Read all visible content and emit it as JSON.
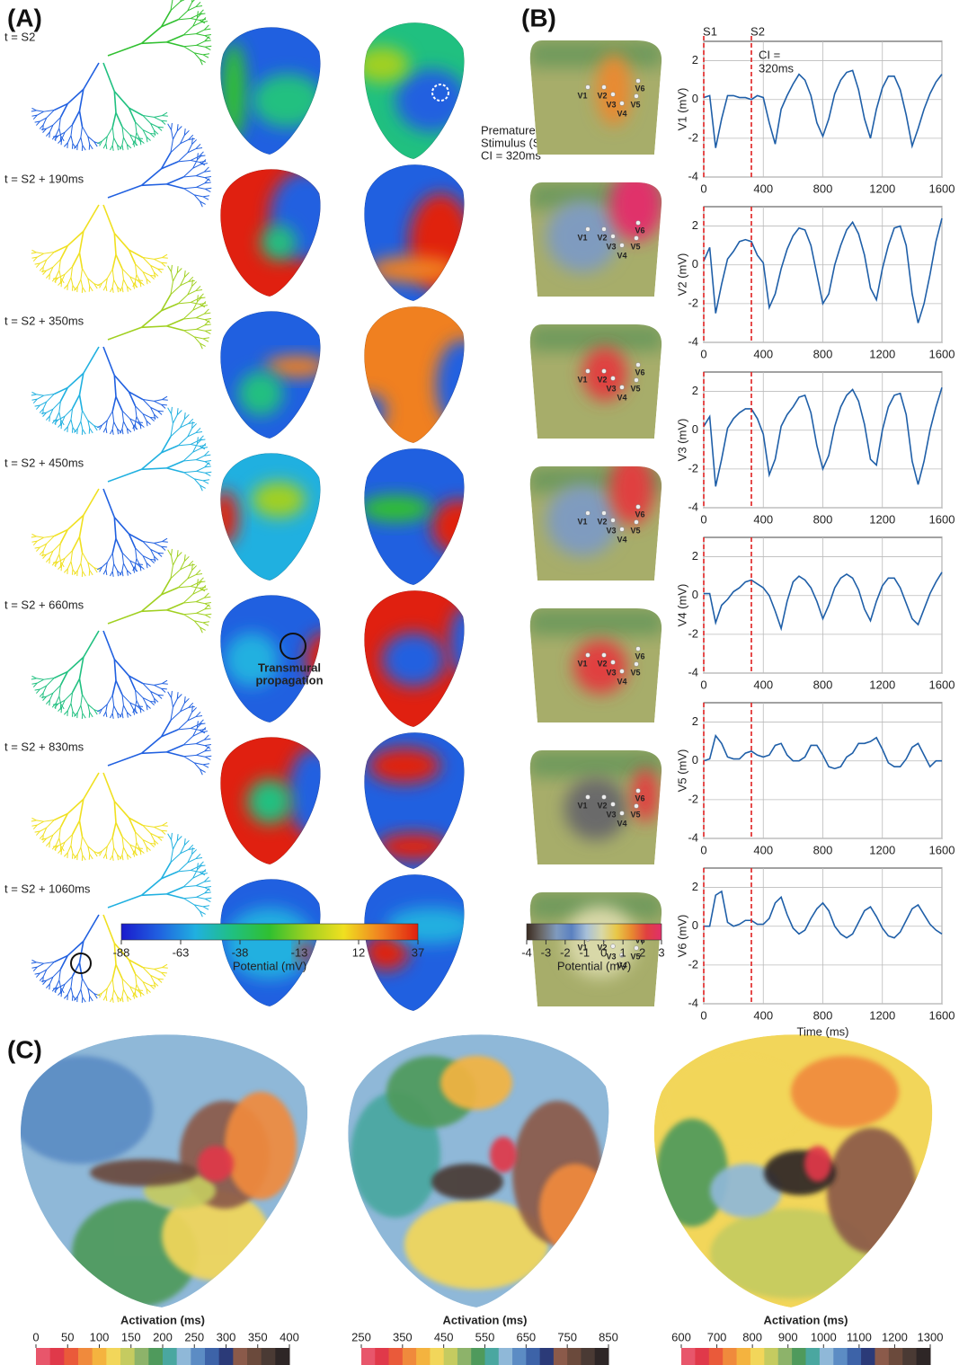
{
  "panels": {
    "a": "(A)",
    "b": "(B)",
    "c": "(C)"
  },
  "time_labels": [
    "t = S2",
    "t = S2 + 190ms",
    "t = S2 + 350ms",
    "t = S2 + 450ms",
    "t = S2 + 660ms",
    "t = S2 + 830ms",
    "t = S2 + 1060ms"
  ],
  "annotations": {
    "premature": [
      "Premature",
      "Stimulus (S2)",
      "CI = 320ms"
    ],
    "transmural": [
      "Transmural",
      "propagation"
    ]
  },
  "electrodes": [
    "V1",
    "V2",
    "V3",
    "V4",
    "V5",
    "V6"
  ],
  "colorbar_potential": {
    "label": "Potential (mV)",
    "lim": [
      -88,
      37
    ],
    "ticks": [
      -88,
      -63,
      -38,
      -13,
      12,
      37
    ],
    "colors": [
      "#1a1acc",
      "#2060e0",
      "#20b0e0",
      "#20c080",
      "#30c030",
      "#a0d020",
      "#f0e020",
      "#f08020",
      "#e02010"
    ]
  },
  "colorbar_torso": {
    "label": "Potential (mV)",
    "lim": [
      -4,
      3
    ],
    "ticks": [
      -4,
      -3,
      -2,
      -1,
      0,
      1,
      2,
      3
    ],
    "colors": [
      "#3a2a20",
      "#6b6a6a",
      "#7f9bbf",
      "#5a80c0",
      "#a8c0d8",
      "#d8d8a8",
      "#e8c848",
      "#e88a30",
      "#e04040",
      "#e0306a"
    ]
  },
  "activation_maps": [
    {
      "label": "Activation (ms)",
      "lim": [
        0,
        400
      ],
      "ticks": [
        0,
        50,
        100,
        150,
        200,
        250,
        300,
        350,
        400
      ]
    },
    {
      "label": "Activation (ms)",
      "lim": [
        250,
        850
      ],
      "ticks": [
        250,
        350,
        450,
        550,
        650,
        750,
        850
      ]
    },
    {
      "label": "Activation (ms)",
      "lim": [
        600,
        1300
      ],
      "ticks": [
        600,
        700,
        800,
        900,
        1000,
        1100,
        1200,
        1300
      ]
    }
  ],
  "activation_colors": [
    "#e8566b",
    "#e0394a",
    "#ea5a3a",
    "#f08a3c",
    "#f4b33f",
    "#f2d65a",
    "#c5cb60",
    "#8db36a",
    "#4f9a5c",
    "#4aa7a0",
    "#8fb8d8",
    "#5c8cc4",
    "#3d63a8",
    "#2b3a78",
    "#8b5a4a",
    "#6b4a3c",
    "#4a3a34",
    "#2e2626"
  ],
  "chart_data": [
    {
      "type": "line",
      "ylabel": "V1 (mV)",
      "color": "#1f5fa8",
      "x": [
        0,
        40,
        80,
        120,
        160,
        200,
        240,
        280,
        320,
        360,
        400,
        440,
        480,
        520,
        560,
        600,
        640,
        680,
        720,
        760,
        800,
        840,
        880,
        920,
        960,
        1000,
        1040,
        1080,
        1120,
        1160,
        1200,
        1240,
        1280,
        1320,
        1360,
        1400,
        1440,
        1480,
        1520,
        1560,
        1600
      ],
      "values": [
        0.1,
        0.2,
        -2.5,
        -1.0,
        0.2,
        0.2,
        0.1,
        0.1,
        0.0,
        0.2,
        0.1,
        -1.2,
        -2.3,
        -0.5,
        0.2,
        0.8,
        1.3,
        1.0,
        0.2,
        -1.2,
        -1.9,
        -1.0,
        0.3,
        1.0,
        1.4,
        1.5,
        0.5,
        -1.0,
        -2.0,
        -0.5,
        0.6,
        1.2,
        1.2,
        0.5,
        -0.8,
        -2.4,
        -1.5,
        -0.5,
        0.3,
        0.9,
        1.3
      ],
      "xlim": [
        0,
        1600
      ],
      "xticks": [
        0,
        400,
        800,
        1200,
        1600
      ],
      "ylim": [
        -4,
        3
      ],
      "yticks": [
        -4,
        -2,
        0,
        2
      ],
      "grid": true,
      "markers": [
        {
          "x": 0,
          "label": "S1",
          "color": "#e02020"
        },
        {
          "x": 320,
          "label": "S2",
          "color": "#e02020"
        }
      ],
      "annotation": [
        "CI =",
        "320ms"
      ]
    },
    {
      "type": "line",
      "ylabel": "V2 (mV)",
      "color": "#1f5fa8",
      "x": [
        0,
        40,
        80,
        120,
        160,
        200,
        240,
        280,
        320,
        360,
        400,
        440,
        480,
        520,
        560,
        600,
        640,
        680,
        720,
        760,
        800,
        840,
        880,
        920,
        960,
        1000,
        1040,
        1080,
        1120,
        1160,
        1200,
        1240,
        1280,
        1320,
        1360,
        1400,
        1440,
        1480,
        1520,
        1560,
        1600
      ],
      "values": [
        0.2,
        0.9,
        -2.5,
        -1.0,
        0.3,
        0.7,
        1.2,
        1.3,
        1.2,
        0.5,
        0.1,
        -2.2,
        -1.5,
        -0.2,
        0.8,
        1.5,
        1.9,
        1.8,
        1.0,
        -0.5,
        -2.0,
        -1.5,
        0.0,
        1.0,
        1.8,
        2.2,
        1.6,
        0.5,
        -1.2,
        -1.8,
        -0.2,
        1.0,
        1.9,
        2.0,
        1.0,
        -1.5,
        -3.0,
        -2.0,
        -0.5,
        1.2,
        2.4
      ],
      "xlim": [
        0,
        1600
      ],
      "xticks": [
        0,
        400,
        800,
        1200,
        1600
      ],
      "ylim": [
        -4,
        3
      ],
      "yticks": [
        -4,
        -2,
        0,
        2
      ],
      "grid": true,
      "markers": [
        {
          "x": 0,
          "color": "#e02020"
        },
        {
          "x": 320,
          "color": "#e02020"
        }
      ]
    },
    {
      "type": "line",
      "ylabel": "V3 (mV)",
      "color": "#1f5fa8",
      "x": [
        0,
        40,
        80,
        120,
        160,
        200,
        240,
        280,
        320,
        360,
        400,
        440,
        480,
        520,
        560,
        600,
        640,
        680,
        720,
        760,
        800,
        840,
        880,
        920,
        960,
        1000,
        1040,
        1080,
        1120,
        1160,
        1200,
        1240,
        1280,
        1320,
        1360,
        1400,
        1440,
        1480,
        1520,
        1560,
        1600
      ],
      "values": [
        0.2,
        0.7,
        -2.9,
        -1.5,
        0.1,
        0.6,
        0.9,
        1.1,
        1.1,
        0.6,
        -0.2,
        -2.3,
        -1.5,
        0.2,
        0.8,
        1.2,
        1.7,
        1.8,
        0.9,
        -0.8,
        -2.0,
        -1.3,
        0.2,
        1.2,
        1.8,
        2.1,
        1.5,
        0.3,
        -1.5,
        -1.8,
        0.0,
        1.2,
        1.8,
        1.9,
        0.8,
        -1.6,
        -2.8,
        -1.6,
        0.0,
        1.2,
        2.2
      ],
      "xlim": [
        0,
        1600
      ],
      "xticks": [
        0,
        400,
        800,
        1200,
        1600
      ],
      "ylim": [
        -4,
        3
      ],
      "yticks": [
        -4,
        -2,
        0,
        2
      ],
      "grid": true,
      "markers": [
        {
          "x": 0,
          "color": "#e02020"
        },
        {
          "x": 320,
          "color": "#e02020"
        }
      ]
    },
    {
      "type": "line",
      "ylabel": "V4 (mV)",
      "color": "#1f5fa8",
      "x": [
        0,
        40,
        80,
        120,
        160,
        200,
        240,
        280,
        320,
        360,
        400,
        440,
        480,
        520,
        560,
        600,
        640,
        680,
        720,
        760,
        800,
        840,
        880,
        920,
        960,
        1000,
        1040,
        1080,
        1120,
        1160,
        1200,
        1240,
        1280,
        1320,
        1360,
        1400,
        1440,
        1480,
        1520,
        1560,
        1600
      ],
      "values": [
        0.1,
        0.1,
        -1.4,
        -0.5,
        -0.2,
        0.2,
        0.4,
        0.7,
        0.8,
        0.6,
        0.4,
        0.0,
        -0.8,
        -1.7,
        -0.3,
        0.7,
        1.0,
        0.8,
        0.4,
        -0.3,
        -1.2,
        -0.5,
        0.4,
        0.9,
        1.1,
        0.9,
        0.3,
        -0.7,
        -1.3,
        -0.3,
        0.5,
        0.9,
        0.9,
        0.4,
        -0.4,
        -1.2,
        -1.5,
        -0.7,
        0.1,
        0.7,
        1.2
      ],
      "xlim": [
        0,
        1600
      ],
      "xticks": [
        0,
        400,
        800,
        1200,
        1600
      ],
      "ylim": [
        -4,
        3
      ],
      "yticks": [
        -4,
        -2,
        0,
        2
      ],
      "grid": true,
      "markers": [
        {
          "x": 0,
          "color": "#e02020"
        },
        {
          "x": 320,
          "color": "#e02020"
        }
      ]
    },
    {
      "type": "line",
      "ylabel": "V5 (mV)",
      "color": "#1f5fa8",
      "x": [
        0,
        40,
        80,
        120,
        160,
        200,
        240,
        280,
        320,
        360,
        400,
        440,
        480,
        520,
        560,
        600,
        640,
        680,
        720,
        760,
        800,
        840,
        880,
        920,
        960,
        1000,
        1040,
        1080,
        1120,
        1160,
        1200,
        1240,
        1280,
        1320,
        1360,
        1400,
        1440,
        1480,
        1520,
        1560,
        1600
      ],
      "values": [
        0.0,
        0.1,
        1.3,
        0.9,
        0.2,
        0.1,
        0.1,
        0.4,
        0.5,
        0.3,
        0.2,
        0.3,
        0.8,
        0.9,
        0.3,
        0.0,
        0.0,
        0.2,
        0.8,
        0.8,
        0.3,
        -0.3,
        -0.4,
        -0.3,
        0.2,
        0.4,
        0.9,
        0.9,
        1.0,
        1.2,
        0.6,
        -0.1,
        -0.3,
        -0.3,
        0.1,
        0.7,
        0.9,
        0.3,
        -0.3,
        0.0,
        0.0
      ],
      "xlim": [
        0,
        1600
      ],
      "xticks": [
        0,
        400,
        800,
        1200,
        1600
      ],
      "ylim": [
        -4,
        3
      ],
      "yticks": [
        -4,
        -2,
        0,
        2
      ],
      "grid": true,
      "markers": [
        {
          "x": 0,
          "color": "#e02020"
        },
        {
          "x": 320,
          "color": "#e02020"
        }
      ]
    },
    {
      "type": "line",
      "ylabel": "V6 (mV)",
      "color": "#1f5fa8",
      "xlabel": "Time (ms)",
      "x": [
        0,
        40,
        80,
        120,
        160,
        200,
        240,
        280,
        320,
        360,
        400,
        440,
        480,
        520,
        560,
        600,
        640,
        680,
        720,
        760,
        800,
        840,
        880,
        920,
        960,
        1000,
        1040,
        1080,
        1120,
        1160,
        1200,
        1240,
        1280,
        1320,
        1360,
        1400,
        1440,
        1480,
        1520,
        1560,
        1600
      ],
      "values": [
        0.0,
        0.0,
        1.6,
        1.8,
        0.2,
        0.0,
        0.1,
        0.3,
        0.3,
        0.1,
        0.1,
        0.4,
        1.2,
        1.5,
        0.6,
        -0.1,
        -0.4,
        -0.2,
        0.4,
        0.9,
        1.2,
        0.8,
        0.0,
        -0.4,
        -0.6,
        -0.4,
        0.2,
        0.8,
        1.0,
        0.5,
        -0.1,
        -0.5,
        -0.6,
        -0.3,
        0.3,
        0.9,
        1.1,
        0.6,
        0.1,
        -0.2,
        -0.4
      ],
      "xlim": [
        0,
        1600
      ],
      "xticks": [
        0,
        400,
        800,
        1200,
        1600
      ],
      "ylim": [
        -4,
        3
      ],
      "yticks": [
        -4,
        -2,
        0,
        2
      ],
      "grid": true,
      "markers": [
        {
          "x": 0,
          "color": "#e02020"
        },
        {
          "x": 320,
          "color": "#e02020"
        }
      ]
    }
  ]
}
